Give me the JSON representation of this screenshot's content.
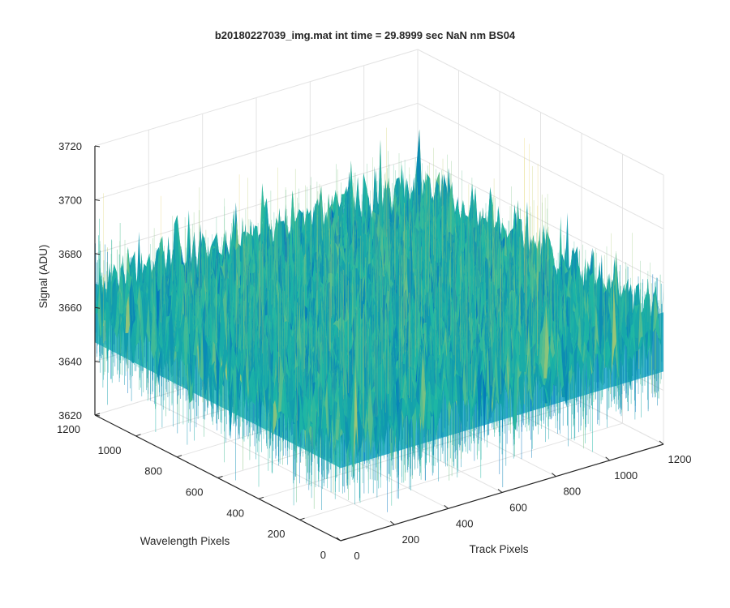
{
  "chart_data": {
    "type": "surface",
    "title": "b20180227039_img.mat int time = 29.8999 sec  NaN nm BS04",
    "xlabel": "Track Pixels",
    "ylabel": "Wavelength Pixels",
    "zlabel": "Signal (ADU)",
    "xlim": [
      0,
      1200
    ],
    "ylim": [
      0,
      1200
    ],
    "zlim": [
      3620,
      3720
    ],
    "xticks": [
      "0",
      "200",
      "400",
      "600",
      "800",
      "1000",
      "1200"
    ],
    "yticks": [
      "0",
      "200",
      "400",
      "600",
      "800",
      "1000",
      "1200"
    ],
    "zticks": [
      "3620",
      "3640",
      "3660",
      "3680",
      "3700",
      "3720"
    ],
    "data_extent": {
      "x": [
        0,
        1200
      ],
      "y": [
        0,
        1200
      ]
    },
    "signal_mean": 3663,
    "signal_range": [
      3635,
      3700
    ],
    "grid": true,
    "colormap": "parula",
    "colors": {
      "low": "#0072bd",
      "mid": "#1db6a4",
      "high": "#e6cf5a"
    }
  }
}
